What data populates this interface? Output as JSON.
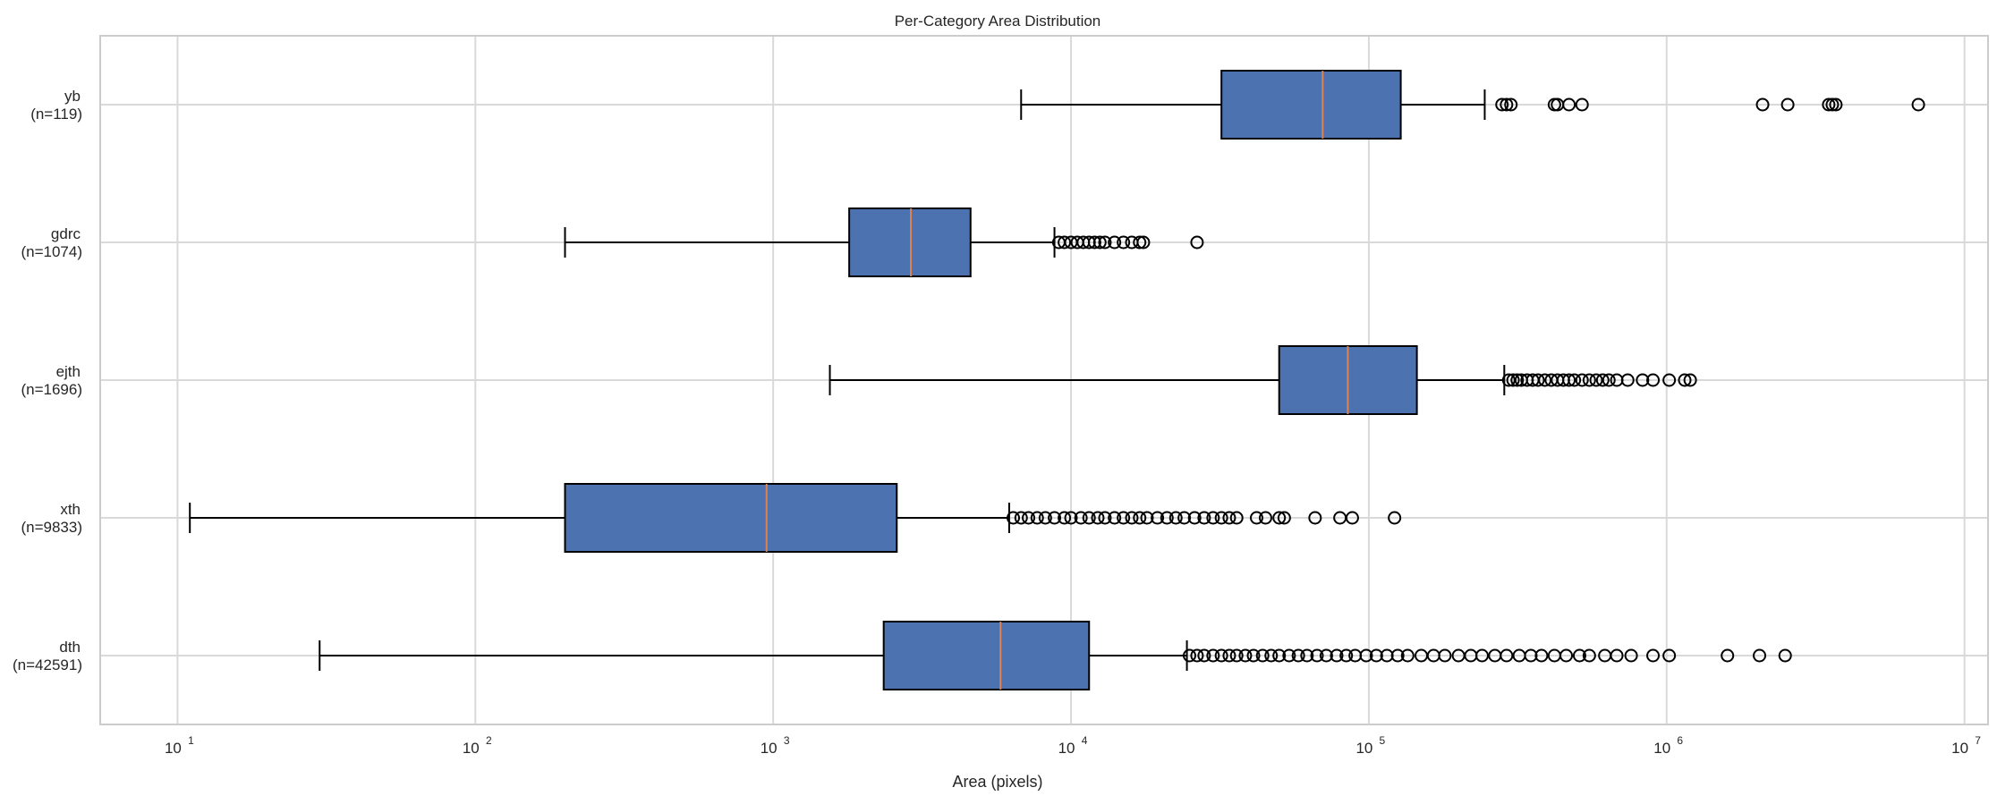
{
  "chart_data": {
    "type": "boxplot",
    "orientation": "horizontal",
    "title": "Per-Category Area Distribution",
    "xlabel": "Area (pixels)",
    "ylabel": "",
    "x_scale": "log",
    "xlim": [
      5.5,
      12000000
    ],
    "x_ticks": [
      {
        "value": 10,
        "base": "10",
        "exp": "1"
      },
      {
        "value": 100,
        "base": "10",
        "exp": "2"
      },
      {
        "value": 1000,
        "base": "10",
        "exp": "3"
      },
      {
        "value": 10000,
        "base": "10",
        "exp": "4"
      },
      {
        "value": 100000,
        "base": "10",
        "exp": "5"
      },
      {
        "value": 1000000,
        "base": "10",
        "exp": "6"
      },
      {
        "value": 10000000,
        "base": "10",
        "exp": "7"
      }
    ],
    "grid": true,
    "colors": {
      "box_fill": "#4c72b0",
      "box_edge": "#000000",
      "median": "#dd8452",
      "grid": "#d9d9d9",
      "axes_edge": "#cccccc"
    },
    "categories": [
      {
        "name": "yb",
        "count_label": "(n=119)",
        "whisker_low": 6800,
        "q1": 32000,
        "median": 70000,
        "q3": 128000,
        "whisker_high": 245000,
        "outliers": [
          280000,
          290000,
          300000,
          420000,
          430000,
          470000,
          520000,
          2100000,
          2550000,
          3500000,
          3600000,
          3700000,
          7000000
        ]
      },
      {
        "name": "gdrc",
        "count_label": "(n=1074)",
        "whisker_low": 200,
        "q1": 1800,
        "median": 2900,
        "q3": 4600,
        "whisker_high": 8800,
        "outliers": [
          9100,
          9500,
          10000,
          10500,
          11000,
          11500,
          12000,
          12500,
          13000,
          14000,
          15000,
          16000,
          17000,
          17500,
          26500
        ]
      },
      {
        "name": "ejth",
        "count_label": "(n=1696)",
        "whisker_low": 1550,
        "q1": 50000,
        "median": 85000,
        "q3": 145000,
        "whisker_high": 285000,
        "outliers": [
          295000,
          305000,
          315000,
          325000,
          340000,
          355000,
          370000,
          390000,
          410000,
          430000,
          450000,
          470000,
          490000,
          520000,
          550000,
          580000,
          610000,
          640000,
          680000,
          740000,
          830000,
          900000,
          1020000,
          1150000,
          1200000
        ]
      },
      {
        "name": "xth",
        "count_label": "(n=9833)",
        "whisker_low": 11,
        "q1": 200,
        "median": 950,
        "q3": 2600,
        "whisker_high": 6200,
        "outliers": [
          6400,
          6800,
          7200,
          7700,
          8200,
          8800,
          9500,
          10000,
          10800,
          11500,
          12300,
          13000,
          14000,
          15000,
          16000,
          17000,
          18000,
          19500,
          21000,
          22500,
          24000,
          26000,
          28000,
          30000,
          32000,
          34000,
          36000,
          42000,
          45000,
          50000,
          52000,
          66000,
          80000,
          88000,
          122000
        ]
      },
      {
        "name": "dth",
        "count_label": "(n=42591)",
        "whisker_low": 30,
        "q1": 2350,
        "median": 5800,
        "q3": 11500,
        "whisker_high": 24500,
        "outliers": [
          25000,
          26500,
          28000,
          30000,
          32000,
          34000,
          36000,
          38500,
          41000,
          44000,
          47000,
          50000,
          54000,
          58000,
          62000,
          67000,
          72000,
          78000,
          84000,
          90000,
          98000,
          106000,
          115000,
          125000,
          135000,
          150000,
          165000,
          180000,
          200000,
          220000,
          240000,
          265000,
          290000,
          320000,
          350000,
          380000,
          420000,
          460000,
          510000,
          550000,
          620000,
          680000,
          760000,
          900000,
          1020000,
          1600000,
          2050000,
          2500000
        ]
      }
    ]
  }
}
